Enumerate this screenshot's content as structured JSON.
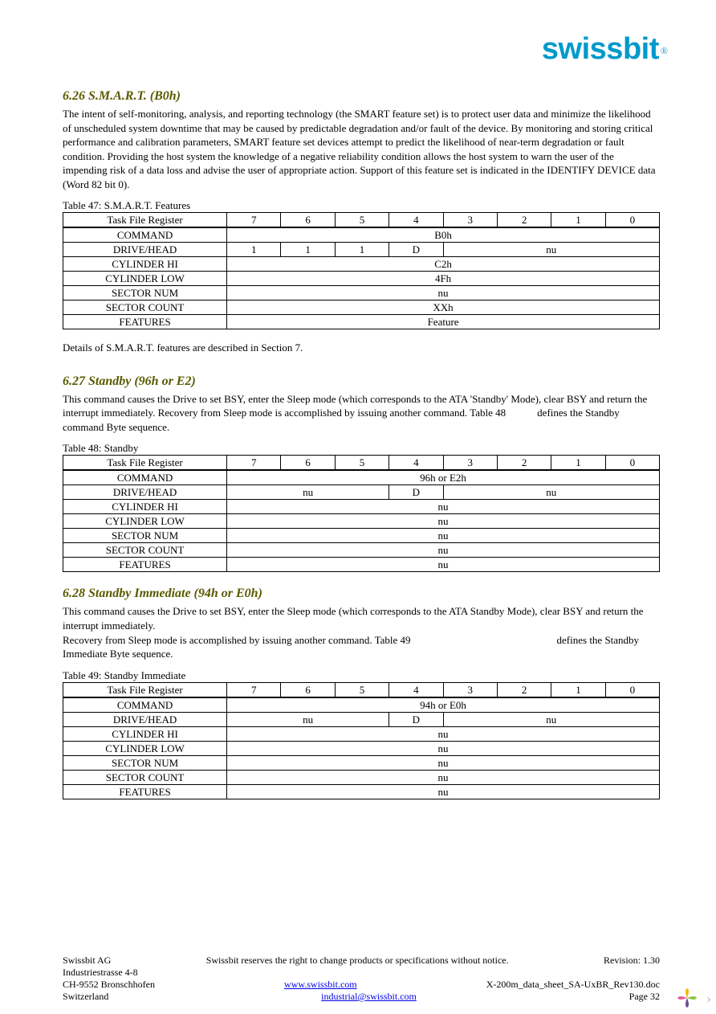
{
  "logo": {
    "text": "swissbit",
    "registered": "®",
    "color": "#0099cc"
  },
  "sections": [
    {
      "heading": "6.26 S.M.A.R.T. (B0h)",
      "paragraph": "The intent of self-monitoring, analysis, and reporting technology (the SMART feature set) is to protect user data and minimize the likelihood of unscheduled system downtime that may be caused by predictable degradation and/or fault of the device. By monitoring and storing critical performance and calibration parameters, SMART feature set devices attempt to predict the likelihood of near-term degradation or fault condition. Providing the host system the knowledge of a negative reliability condition allows the host system to warn the user of the impending risk of a data loss and advise the user of appropriate action. Support of this feature set is indicated in the IDENTIFY DEVICE data (Word 82 bit 0).",
      "table_caption": "Table 47: S.M.A.R.T. Features",
      "header": {
        "label": "Task File Register",
        "bits": [
          "7",
          "6",
          "5",
          "4",
          "3",
          "2",
          "1",
          "0"
        ]
      },
      "rows": [
        {
          "label": "COMMAND",
          "cells": [
            {
              "span": 8,
              "text": "B0h"
            }
          ]
        },
        {
          "label": "DRIVE/HEAD",
          "cells": [
            {
              "span": 1,
              "text": "1"
            },
            {
              "span": 1,
              "text": "1"
            },
            {
              "span": 1,
              "text": "1"
            },
            {
              "span": 1,
              "text": "D"
            },
            {
              "span": 4,
              "text": "nu"
            }
          ]
        },
        {
          "label": "CYLINDER HI",
          "cells": [
            {
              "span": 8,
              "text": "C2h"
            }
          ]
        },
        {
          "label": "CYLINDER LOW",
          "cells": [
            {
              "span": 8,
              "text": "4Fh"
            }
          ]
        },
        {
          "label": "SECTOR NUM",
          "cells": [
            {
              "span": 8,
              "text": "nu"
            }
          ]
        },
        {
          "label": "SECTOR COUNT",
          "cells": [
            {
              "span": 8,
              "text": "XXh"
            }
          ]
        },
        {
          "label": "FEATURES",
          "cells": [
            {
              "span": 8,
              "text": "Feature"
            }
          ]
        }
      ],
      "post_text": "Details of S.M.A.R.T. features are described in Section 7."
    },
    {
      "heading": "6.27 Standby (96h or E2)",
      "paragraph": "This command causes the Drive to set BSY, enter the Sleep mode (which corresponds to the ATA 'Standby' Mode), clear BSY and return the interrupt immediately. Recovery from Sleep mode is accomplished by issuing another command. Table 48            defines the Standby command Byte sequence.",
      "table_caption": "Table 48: Standby",
      "header": {
        "label": "Task File Register",
        "bits": [
          "7",
          "6",
          "5",
          "4",
          "3",
          "2",
          "1",
          "0"
        ]
      },
      "rows": [
        {
          "label": "COMMAND",
          "cells": [
            {
              "span": 8,
              "text": "96h or E2h"
            }
          ]
        },
        {
          "label": "DRIVE/HEAD",
          "cells": [
            {
              "span": 3,
              "text": "nu"
            },
            {
              "span": 1,
              "text": "D"
            },
            {
              "span": 4,
              "text": "nu"
            }
          ]
        },
        {
          "label": "CYLINDER HI",
          "cells": [
            {
              "span": 8,
              "text": "nu"
            }
          ]
        },
        {
          "label": "CYLINDER LOW",
          "cells": [
            {
              "span": 8,
              "text": "nu"
            }
          ]
        },
        {
          "label": "SECTOR NUM",
          "cells": [
            {
              "span": 8,
              "text": "nu"
            }
          ]
        },
        {
          "label": "SECTOR COUNT",
          "cells": [
            {
              "span": 8,
              "text": "nu"
            }
          ]
        },
        {
          "label": "FEATURES",
          "cells": [
            {
              "span": 8,
              "text": "nu"
            }
          ]
        }
      ]
    },
    {
      "heading": "6.28 Standby Immediate (94h or E0h)",
      "paragraph": "This command causes the Drive to set BSY, enter the Sleep mode (which corresponds to the ATA Standby Mode), clear BSY and return the interrupt immediately.\nRecovery from Sleep mode is accomplished by issuing another command. Table 49                                                        defines the Standby Immediate Byte sequence.",
      "table_caption": "Table 49: Standby Immediate",
      "header": {
        "label": "Task File Register",
        "bits": [
          "7",
          "6",
          "5",
          "4",
          "3",
          "2",
          "1",
          "0"
        ]
      },
      "rows": [
        {
          "label": "COMMAND",
          "cells": [
            {
              "span": 8,
              "text": "94h or E0h"
            }
          ]
        },
        {
          "label": "DRIVE/HEAD",
          "cells": [
            {
              "span": 3,
              "text": "nu"
            },
            {
              "span": 1,
              "text": "D"
            },
            {
              "span": 4,
              "text": "nu"
            }
          ]
        },
        {
          "label": "CYLINDER HI",
          "cells": [
            {
              "span": 8,
              "text": "nu"
            }
          ]
        },
        {
          "label": "CYLINDER LOW",
          "cells": [
            {
              "span": 8,
              "text": "nu"
            }
          ]
        },
        {
          "label": "SECTOR NUM",
          "cells": [
            {
              "span": 8,
              "text": "nu"
            }
          ]
        },
        {
          "label": "SECTOR COUNT",
          "cells": [
            {
              "span": 8,
              "text": "nu"
            }
          ]
        },
        {
          "label": "FEATURES",
          "cells": [
            {
              "span": 8,
              "text": "nu"
            }
          ]
        }
      ]
    }
  ],
  "footer": {
    "company": "Swissbit AG",
    "address1": "Industriestrasse 4-8",
    "address2": "CH-9552 Bronschhofen",
    "country": "Switzerland",
    "notice": "Swissbit reserves the right to change products or specifications without notice.",
    "url": "www.swissbit.com",
    "email": "industrial@swissbit.com",
    "revision": "Revision: 1.30",
    "filename": "X-200m_data_sheet_SA-UxBR_Rev130.doc",
    "page": "Page 32"
  },
  "style": {
    "heading_color": "#5a5a00",
    "link_color": "#0000ee",
    "border_color": "#000000",
    "body_font_size": 13
  }
}
